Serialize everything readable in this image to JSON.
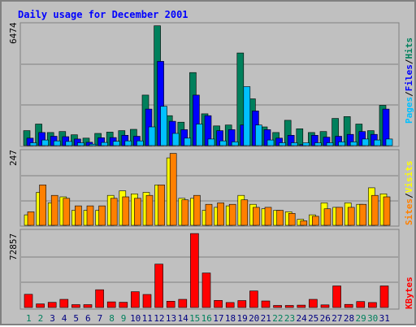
{
  "title": "Daily usage for December 2001",
  "colors": {
    "hits": "#00805c",
    "files": "#0000ff",
    "pages": "#00c0ff",
    "visits": "#ffff00",
    "sites": "#ff8000",
    "kbytes": "#ff0000",
    "weekend_day_label": "#00805c",
    "weekday_day_label": "#000080",
    "title": "#0000ff"
  },
  "chart_data": [
    {
      "type": "bar",
      "panel": "hits-files-pages",
      "y_max_label": "6474",
      "ylim": [
        0,
        6474
      ],
      "legend": [
        "Pages",
        "/",
        "Files",
        "/",
        "Hits"
      ],
      "categories": [
        "1",
        "2",
        "3",
        "4",
        "5",
        "6",
        "7",
        "8",
        "9",
        "10",
        "11",
        "12",
        "13",
        "14",
        "15",
        "16",
        "17",
        "18",
        "19",
        "20",
        "21",
        "22",
        "23",
        "24",
        "25",
        "26",
        "27",
        "28",
        "29",
        "30",
        "31"
      ],
      "weekend_days": [
        1,
        2,
        8,
        9,
        15,
        16,
        22,
        23,
        29,
        30
      ],
      "series": [
        {
          "name": "Hits",
          "values": [
            800,
            1150,
            700,
            750,
            580,
            400,
            650,
            720,
            800,
            870,
            2700,
            6400,
            1600,
            1250,
            3900,
            1700,
            1050,
            1100,
            4950,
            2500,
            1000,
            700,
            1350,
            900,
            700,
            750,
            1450,
            1550,
            1150,
            800,
            2150
          ]
        },
        {
          "name": "Files",
          "values": [
            400,
            700,
            500,
            480,
            350,
            180,
            420,
            430,
            550,
            500,
            1950,
            4500,
            1300,
            850,
            2700,
            1600,
            800,
            850,
            1100,
            1850,
            850,
            400,
            550,
            50,
            550,
            450,
            500,
            600,
            750,
            600,
            1950
          ]
        },
        {
          "name": "Pages",
          "values": [
            150,
            300,
            250,
            220,
            150,
            80,
            170,
            230,
            250,
            250,
            1000,
            2100,
            650,
            400,
            1150,
            350,
            250,
            200,
            3150,
            1100,
            300,
            150,
            150,
            150,
            150,
            150,
            200,
            200,
            350,
            300,
            350
          ]
        }
      ]
    },
    {
      "type": "bar",
      "panel": "visits-sites",
      "y_max_label": "247",
      "ylim": [
        0,
        247
      ],
      "legend": [
        "Sites",
        "/",
        "Visits"
      ],
      "categories": [
        "1",
        "2",
        "3",
        "4",
        "5",
        "6",
        "7",
        "8",
        "9",
        "10",
        "11",
        "12",
        "13",
        "14",
        "15",
        "16",
        "17",
        "18",
        "19",
        "20",
        "21",
        "22",
        "23",
        "24",
        "25",
        "26",
        "27",
        "28",
        "29",
        "30",
        "31"
      ],
      "series": [
        {
          "name": "Visits",
          "values": [
            35,
            110,
            75,
            95,
            50,
            50,
            50,
            100,
            115,
            105,
            110,
            135,
            225,
            90,
            90,
            50,
            60,
            65,
            100,
            70,
            55,
            50,
            45,
            20,
            35,
            75,
            60,
            75,
            70,
            125,
            105
          ]
        },
        {
          "name": "Sites",
          "values": [
            45,
            135,
            100,
            90,
            65,
            65,
            65,
            90,
            95,
            90,
            100,
            135,
            240,
            85,
            100,
            70,
            75,
            70,
            85,
            60,
            60,
            50,
            40,
            15,
            30,
            55,
            60,
            60,
            70,
            100,
            95
          ]
        }
      ]
    },
    {
      "type": "bar",
      "panel": "kbytes",
      "y_max_label": "72857",
      "ylim": [
        0,
        72857
      ],
      "legend": [
        "KBytes"
      ],
      "categories": [
        "1",
        "2",
        "3",
        "4",
        "5",
        "6",
        "7",
        "8",
        "9",
        "10",
        "11",
        "12",
        "13",
        "14",
        "15",
        "16",
        "17",
        "18",
        "19",
        "20",
        "21",
        "22",
        "23",
        "24",
        "25",
        "26",
        "27",
        "28",
        "29",
        "30",
        "31"
      ],
      "series": [
        {
          "name": "KBytes",
          "values": [
            12800,
            3500,
            5000,
            7900,
            2800,
            2800,
            17300,
            5500,
            5100,
            15400,
            12700,
            42200,
            6100,
            7900,
            72000,
            33600,
            6900,
            4800,
            6700,
            16100,
            6300,
            2000,
            2000,
            2300,
            7900,
            2500,
            21000,
            3000,
            5800,
            4800,
            21000
          ]
        }
      ]
    }
  ]
}
